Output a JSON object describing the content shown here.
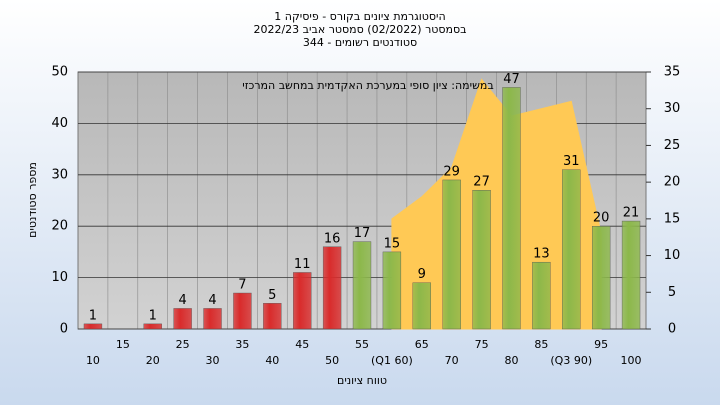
{
  "chart_data": {
    "type": "bar",
    "title": "היסטוגרמת ציונים בקורס - פיסיקה 1",
    "subtitles": [
      "בסמסטר  (02/2022)  סמסטר אביב 2022/23",
      "סטודנטים רשומים - 344"
    ],
    "annotation": "במשימה: ציון סופי במערכת האקדמית במחשב המרכזי",
    "x_label": "טווח ציונים",
    "y_label": "מספר סטודנטים",
    "categories": [
      "10",
      "15",
      "20",
      "25",
      "30",
      "35",
      "40",
      "45",
      "50",
      "55",
      "(Q1 60)",
      "65",
      "70",
      "75",
      "80",
      "85",
      "(Q3 90)",
      "95",
      "100"
    ],
    "series": [
      {
        "type": "bar",
        "values": [
          1,
          null,
          1,
          4,
          4,
          7,
          5,
          11,
          16,
          17,
          15,
          9,
          29,
          27,
          47,
          13,
          31,
          20,
          21
        ],
        "colors": [
          "#d92b2b",
          "#d92b2b",
          "#d92b2b",
          "#d92b2b",
          "#d92b2b",
          "#d92b2b",
          "#d92b2b",
          "#d92b2b",
          "#d92b2b",
          "#8cb84a",
          "#8cb84a",
          "#8cb84a",
          "#8cb84a",
          "#8cb84a",
          "#8cb84a",
          "#8cb84a",
          "#8cb84a",
          "#8cb84a",
          "#8cb84a"
        ]
      },
      {
        "type": "area",
        "axis": "y2",
        "color": "#ffc955",
        "values": [
          null,
          null,
          null,
          null,
          null,
          null,
          null,
          null,
          null,
          null,
          15,
          18,
          22,
          34,
          29,
          30,
          31,
          13,
          null
        ]
      }
    ],
    "ylim": [
      0,
      50
    ],
    "yticks": [
      0,
      10,
      20,
      30,
      40,
      50
    ],
    "y2lim": [
      0,
      35
    ],
    "y2ticks": [
      0,
      5,
      10,
      15,
      20,
      25,
      30,
      35
    ],
    "grid": true
  }
}
